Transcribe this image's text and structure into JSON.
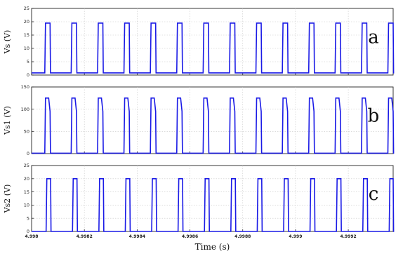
{
  "chart_data": [
    {
      "type": "line",
      "panel_label": "a",
      "ylabel": "Vs (V)",
      "ylim": [
        0,
        25
      ],
      "yticks": [
        0,
        5,
        10,
        15,
        20,
        25
      ],
      "xlim": [
        4.998,
        4.99937
      ],
      "xticks": [
        4.998,
        4.9982,
        4.9984,
        4.9986,
        4.9988,
        4.999,
        4.9992
      ],
      "xtick_labels": [
        "",
        "",
        "",
        "",
        "",
        "",
        ""
      ],
      "grid": true,
      "color": "#1a1ae6",
      "series": [
        {
          "waveform": "pulse",
          "period_s": 0.0001,
          "first_rise_s": 4.99805,
          "pulse_width_s": 2e-05,
          "high_v": 19.5,
          "low_v": 0.8
        }
      ]
    },
    {
      "type": "line",
      "panel_label": "b",
      "ylabel": "Vs1 (V)",
      "ylim": [
        0,
        150
      ],
      "yticks": [
        0,
        50,
        100,
        150
      ],
      "xlim": [
        4.998,
        4.99937
      ],
      "xticks": [
        4.998,
        4.9982,
        4.9984,
        4.9986,
        4.9988,
        4.999,
        4.9992
      ],
      "xtick_labels": [
        "",
        "",
        "",
        "",
        "",
        "",
        ""
      ],
      "grid": true,
      "color": "#1a1ae6",
      "series": [
        {
          "waveform": "pulse-decay",
          "period_s": 0.0001,
          "first_rise_s": 4.99805,
          "pulse_width_s": 2e-05,
          "peak_v": 125,
          "end_v": 95,
          "low_v": 1
        }
      ]
    },
    {
      "type": "line",
      "panel_label": "c",
      "ylabel": "Vs2 (V)",
      "ylim": [
        0,
        25
      ],
      "yticks": [
        0,
        5,
        10,
        15,
        20,
        25
      ],
      "xlim": [
        4.998,
        4.99937
      ],
      "xticks": [
        4.998,
        4.9982,
        4.9984,
        4.9986,
        4.9988,
        4.999,
        4.9992
      ],
      "xtick_labels": [
        "4.998",
        "4.9982",
        "4.9984",
        "4.9986",
        "4.9988",
        "4.999",
        "4.9992"
      ],
      "xlabel": "Time (s)",
      "grid": true,
      "color": "#1a1ae6",
      "series": [
        {
          "waveform": "pulse",
          "period_s": 0.0001,
          "first_rise_s": 4.998055,
          "pulse_width_s": 1.7e-05,
          "high_v": 20,
          "low_v": 0
        }
      ]
    }
  ]
}
